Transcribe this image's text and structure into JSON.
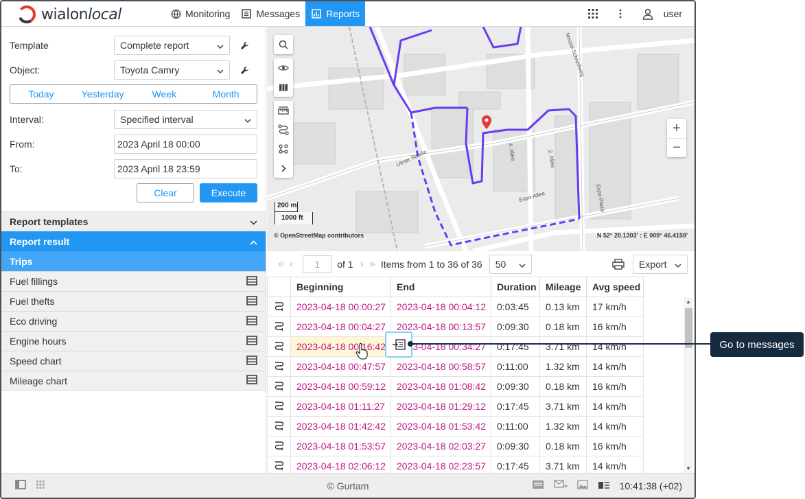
{
  "header": {
    "logo_text": "wialon",
    "logo_text2": "local",
    "nav": [
      {
        "label": "Monitoring",
        "icon": "globe-icon"
      },
      {
        "label": "Messages",
        "icon": "messages-icon"
      },
      {
        "label": "Reports",
        "icon": "reports-icon",
        "active": true
      }
    ],
    "user_label": "user"
  },
  "form": {
    "template_label": "Template",
    "template_value": "Complete report",
    "object_label": "Object:",
    "object_value": "Toyota Camry",
    "quick": [
      "Today",
      "Yesterday",
      "Week",
      "Month"
    ],
    "interval_label": "Interval:",
    "interval_value": "Specified interval",
    "from_label": "From:",
    "from_value": "2023 April 18 00:00",
    "to_label": "To:",
    "to_value": "2023 April 18 23:59",
    "clear_label": "Clear",
    "execute_label": "Execute"
  },
  "sections": {
    "templates": "Report templates",
    "result": "Report result"
  },
  "report_items": {
    "trips": "Trips",
    "others": [
      "Fuel fillings",
      "Fuel thefts",
      "Eco driving",
      "Engine hours",
      "Speed chart",
      "Mileage chart"
    ]
  },
  "map": {
    "scale_m": "200 m",
    "scale_ft": "1000 ft",
    "attribution": "© OpenStreetMap contributors",
    "coords": "N 52° 20.1303' : E 009° 46.4159'",
    "streets": [
      "Ulmer Straße",
      "Expo-Allee",
      "4. Allee",
      "2. Allee",
      "Expo Plaza",
      "Messe-Schnellweg"
    ],
    "zoom_in": "+",
    "zoom_out": "−"
  },
  "pager": {
    "page": "1",
    "of": "of 1",
    "items": "Items from 1 to 36 of 36",
    "per_page": "50",
    "export_label": "Export"
  },
  "table": {
    "headers": [
      "Beginning",
      "End",
      "Duration",
      "Mileage",
      "Avg speed"
    ],
    "rows": [
      [
        "2023-04-18 00:00:27",
        "2023-04-18 00:04:12",
        "0:03:45",
        "0.13 km",
        "17 km/h"
      ],
      [
        "2023-04-18 00:04:27",
        "2023-04-18 00:13:57",
        "0:09:30",
        "0.18 km",
        "16 km/h"
      ],
      [
        "2023-04-18 00:16:42",
        "2023-04-18 00:34:27",
        "0:17:45",
        "3.71 km",
        "14 km/h"
      ],
      [
        "2023-04-18 00:47:57",
        "2023-04-18 00:58:57",
        "0:11:00",
        "1.32 km",
        "14 km/h"
      ],
      [
        "2023-04-18 00:59:12",
        "2023-04-18 01:08:42",
        "0:09:30",
        "0.18 km",
        "16 km/h"
      ],
      [
        "2023-04-18 01:11:27",
        "2023-04-18 01:29:12",
        "0:17:45",
        "3.71 km",
        "14 km/h"
      ],
      [
        "2023-04-18 01:42:42",
        "2023-04-18 01:53:42",
        "0:11:00",
        "1.32 km",
        "14 km/h"
      ],
      [
        "2023-04-18 01:53:57",
        "2023-04-18 02:03:27",
        "0:09:30",
        "0.18 km",
        "16 km/h"
      ],
      [
        "2023-04-18 02:06:12",
        "2023-04-18 02:23:57",
        "0:17:45",
        "3.71 km",
        "14 km/h"
      ]
    ]
  },
  "footer": {
    "copyright": "© Gurtam",
    "time": "10:41:38 (+02)"
  },
  "tooltip": {
    "label": "Go to messages"
  },
  "colors": {
    "accent": "#2196f3",
    "link": "#c2188a",
    "track": "#6a3cf0",
    "tooltip_bg": "#172b3f"
  }
}
